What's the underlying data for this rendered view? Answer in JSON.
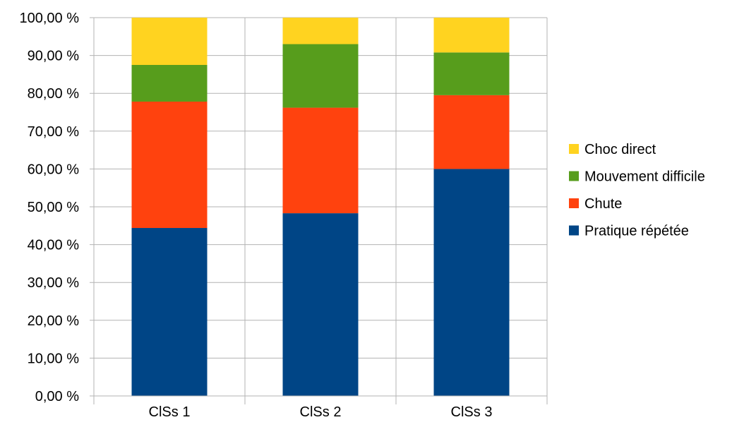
{
  "chart_data": {
    "type": "bar",
    "stacked": true,
    "categories": [
      "ClSs 1",
      "ClSs 2",
      "ClSs 3"
    ],
    "series": [
      {
        "name": "Pratique répétée",
        "color": "#004586",
        "values": [
          44.4,
          48.3,
          60.0
        ]
      },
      {
        "name": "Chute",
        "color": "#FF420E",
        "values": [
          33.4,
          27.9,
          19.5
        ]
      },
      {
        "name": "Mouvement difficile",
        "color": "#579D1C",
        "values": [
          9.7,
          16.8,
          11.3
        ]
      },
      {
        "name": "Choc direct",
        "color": "#FFD320",
        "values": [
          12.5,
          7.0,
          9.2
        ]
      }
    ],
    "y_ticks": [
      "0,00 %",
      "10,00 %",
      "20,00 %",
      "30,00 %",
      "40,00 %",
      "50,00 %",
      "60,00 %",
      "70,00 %",
      "80,00 %",
      "90,00 %",
      "100,00 %"
    ],
    "ylim": [
      0,
      100
    ],
    "grid": true,
    "legend_position": "right",
    "legend_order": [
      "Choc direct",
      "Mouvement difficile",
      "Chute",
      "Pratique répétée"
    ]
  }
}
